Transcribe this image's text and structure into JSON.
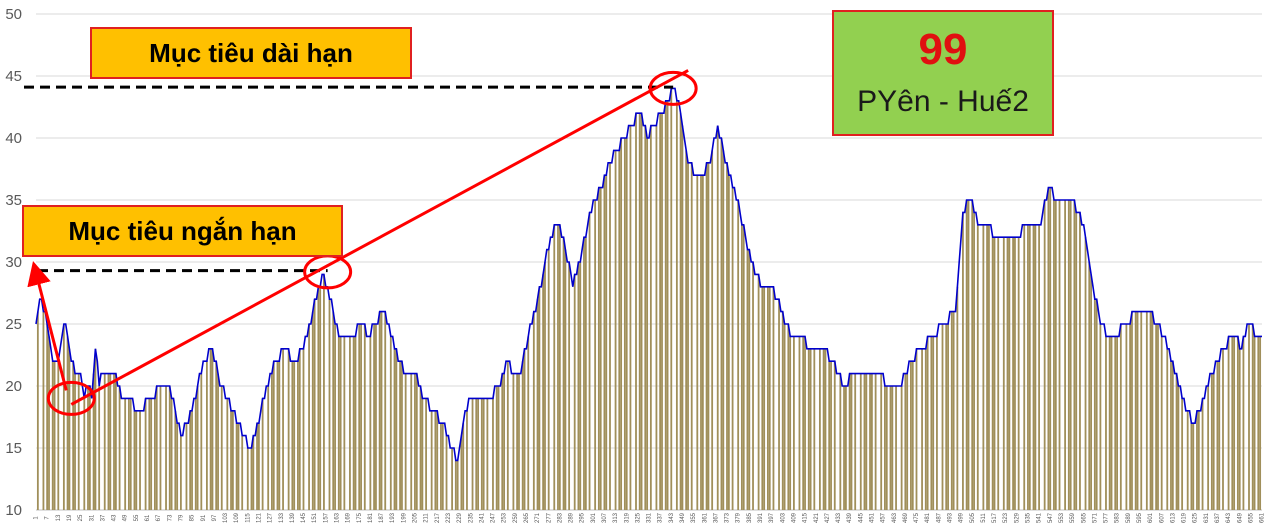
{
  "chart_data": {
    "type": "line+bar",
    "ylim": [
      10,
      50
    ],
    "yticks": [
      10,
      15,
      20,
      25,
      30,
      35,
      40,
      45,
      50
    ],
    "x_range": [
      1,
      661
    ],
    "xtick_labels": [
      "1",
      "7",
      "13",
      "19",
      "25",
      "31",
      "37",
      "43",
      "49",
      "55",
      "61",
      "67",
      "73",
      "79",
      "85",
      "91",
      "97",
      "103",
      "109",
      "115",
      "121",
      "127",
      "133",
      "139",
      "145",
      "151",
      "157",
      "163",
      "169",
      "175",
      "181",
      "187",
      "193",
      "199",
      "205",
      "211",
      "217",
      "223",
      "229",
      "235",
      "241",
      "247",
      "253",
      "259",
      "265",
      "271",
      "277",
      "283",
      "289",
      "295",
      "301",
      "307",
      "313",
      "319",
      "325",
      "331",
      "337",
      "343",
      "349",
      "355",
      "361",
      "367",
      "373",
      "379",
      "385",
      "391",
      "397",
      "403",
      "409",
      "415",
      "421",
      "427",
      "433",
      "439",
      "445",
      "451",
      "457",
      "463",
      "469",
      "475",
      "481",
      "487",
      "493",
      "499",
      "505",
      "511",
      "517",
      "523",
      "529",
      "535",
      "541",
      "547",
      "553",
      "559",
      "565",
      "571",
      "577",
      "583",
      "589",
      "595",
      "601",
      "607",
      "613",
      "619",
      "625",
      "631",
      "637",
      "643",
      "649",
      "655",
      "661"
    ],
    "grid": true,
    "line_color": "#0000cc",
    "bar_color": "#a08f5a",
    "line_series": {
      "x": [
        1,
        3,
        6,
        8,
        10,
        13,
        16,
        18,
        20,
        22,
        25,
        27,
        29,
        31,
        33,
        35,
        37,
        39,
        41,
        43,
        45,
        48,
        52,
        55,
        58,
        61,
        64,
        67,
        70,
        73,
        76,
        79,
        82,
        85,
        88,
        92,
        96,
        100,
        104,
        107,
        110,
        113,
        116,
        119,
        122,
        126,
        130,
        135,
        140,
        145,
        150,
        155,
        158,
        161,
        164,
        168,
        172,
        176,
        180,
        184,
        188,
        192,
        196,
        200,
        205,
        210,
        215,
        220,
        224,
        228,
        232,
        236,
        240,
        245,
        250,
        255,
        258,
        262,
        266,
        270,
        274,
        278,
        282,
        286,
        290,
        294,
        298,
        302,
        306,
        310,
        314,
        318,
        322,
        326,
        330,
        334,
        338,
        341,
        344,
        348,
        352,
        356,
        360,
        364,
        368,
        372,
        376,
        380,
        384,
        388,
        392,
        396,
        400,
        404,
        408,
        412,
        418,
        424,
        430,
        436,
        442,
        448,
        454,
        460,
        466,
        472,
        478,
        484,
        490,
        496,
        500,
        504,
        508,
        512,
        518,
        524,
        530,
        534,
        538,
        542,
        546,
        550,
        554,
        558,
        562,
        566,
        570,
        574,
        578,
        582,
        588,
        594,
        600,
        604,
        608,
        612,
        616,
        620,
        624,
        628,
        634,
        640,
        646,
        650,
        654,
        658
      ],
      "values": [
        25,
        27,
        26,
        24,
        22,
        22,
        25,
        24,
        22,
        21,
        21,
        19,
        20,
        19,
        23,
        20,
        21,
        21,
        21,
        21,
        20,
        19,
        19,
        18,
        18,
        19,
        19,
        20,
        20,
        20,
        18,
        16,
        17,
        18,
        20,
        22,
        23,
        20,
        19,
        18,
        17,
        16,
        15,
        16,
        18,
        20,
        22,
        23,
        22,
        23,
        26,
        29,
        28,
        26,
        24,
        24,
        24,
        25,
        24,
        25,
        26,
        24,
        22,
        21,
        21,
        19,
        18,
        17,
        15,
        14,
        18,
        19,
        19,
        19,
        20,
        22,
        21,
        21,
        24,
        26,
        29,
        32,
        33,
        31,
        28,
        30,
        33,
        35,
        36,
        38,
        39,
        40,
        41,
        42,
        40,
        41,
        42,
        43,
        44,
        42,
        38,
        37,
        37,
        38,
        41,
        38,
        36,
        34,
        31,
        29,
        28,
        28,
        27,
        25,
        24,
        24,
        23,
        23,
        22,
        20,
        21,
        21,
        21,
        20,
        20,
        22,
        23,
        24,
        25,
        26,
        34,
        35,
        33,
        33,
        32,
        32,
        32,
        33,
        33,
        33,
        36,
        35,
        35,
        35,
        34,
        32,
        28,
        25,
        24,
        24,
        25,
        26,
        26,
        25,
        24,
        22,
        20,
        18,
        17,
        18,
        21,
        23,
        24,
        23,
        25,
        24
      ]
    },
    "annotations": {
      "long_term_line_y": 44.1,
      "short_term_line_y": 29.3,
      "circles": [
        [
          20,
          19
        ],
        [
          158,
          29.2
        ],
        [
          344,
          44
        ]
      ]
    }
  },
  "labels": {
    "long_term_target": "Mục tiêu dài hạn",
    "short_term_target": "Mục tiêu ngắn hạn",
    "code_number": "99",
    "code_name": "PYên - Huế2"
  }
}
